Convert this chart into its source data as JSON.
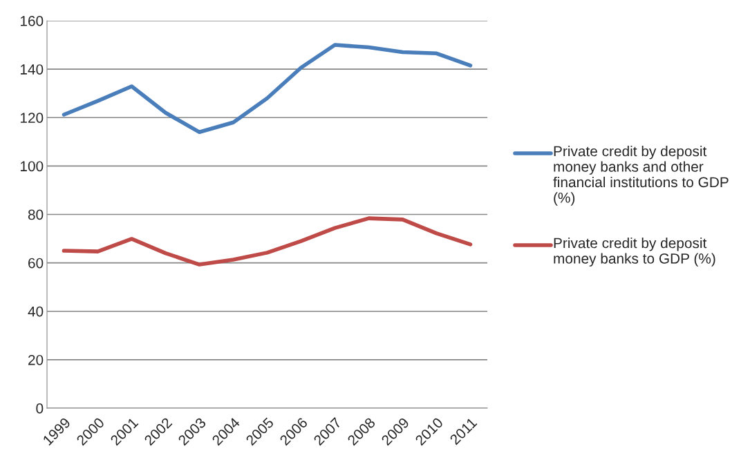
{
  "chart_data": {
    "type": "line",
    "categories": [
      "1999",
      "2000",
      "2001",
      "2002",
      "2003",
      "2004",
      "2005",
      "2006",
      "2007",
      "2008",
      "2009",
      "2010",
      "2011"
    ],
    "series": [
      {
        "name": "Private credit by deposit money banks and other financial institutions to GDP (%)",
        "color": "#4a7ebb",
        "values": [
          121.2,
          126.9,
          132.9,
          122,
          114,
          118,
          128,
          140.6,
          150,
          149,
          147,
          146.5,
          141.5
        ]
      },
      {
        "name": "Private credit by deposit money banks to GDP (%)",
        "color": "#be4b48",
        "values": [
          65,
          64.7,
          69.9,
          64,
          59.3,
          61.3,
          64.2,
          69,
          74.4,
          78.4,
          77.9,
          72.2,
          67.6
        ]
      }
    ],
    "ylim": [
      0,
      160
    ],
    "yticks": [
      0,
      20,
      40,
      60,
      80,
      100,
      120,
      140,
      160
    ],
    "grid": "y",
    "legend": "right",
    "marker": "none",
    "line_style": "solid"
  }
}
